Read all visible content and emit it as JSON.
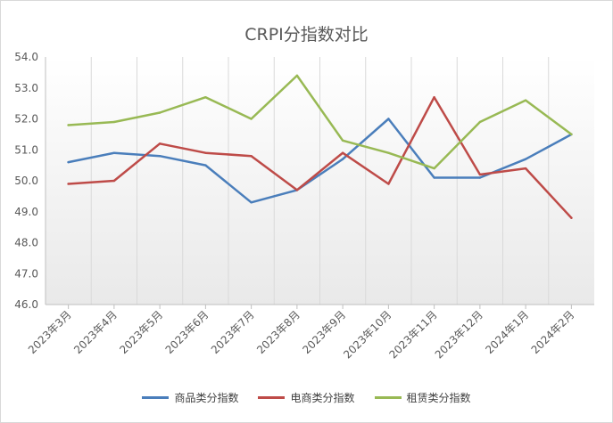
{
  "chart_data": {
    "type": "line",
    "title": "CRPI分指数对比",
    "xlabel": "",
    "ylabel": "",
    "categories": [
      "2023年3月",
      "2023年4月",
      "2023年5月",
      "2023年6月",
      "2023年7月",
      "2023年8月",
      "2023年9月",
      "2023年10月",
      "2023年11月",
      "2023年12月",
      "2024年1月",
      "2024年2月"
    ],
    "ylim": [
      46.0,
      54.0
    ],
    "yticks": [
      "46.0",
      "47.0",
      "48.0",
      "49.0",
      "50.0",
      "51.0",
      "52.0",
      "53.0",
      "54.0"
    ],
    "grid": "vertical",
    "legend_position": "bottom",
    "series": [
      {
        "name": "商品类分指数",
        "color": "#4a7ebb",
        "values": [
          50.6,
          50.9,
          50.8,
          50.5,
          49.3,
          49.7,
          50.7,
          52.0,
          50.1,
          50.1,
          50.7,
          51.5
        ]
      },
      {
        "name": "电商类分指数",
        "color": "#be4b48",
        "values": [
          49.9,
          50.0,
          51.2,
          50.9,
          50.8,
          49.7,
          50.9,
          49.9,
          52.7,
          50.2,
          50.4,
          48.8
        ]
      },
      {
        "name": "租赁类分指数",
        "color": "#98b954",
        "values": [
          51.8,
          51.9,
          52.2,
          52.7,
          52.0,
          53.4,
          51.3,
          50.9,
          50.4,
          51.9,
          52.6,
          51.5
        ]
      }
    ]
  }
}
